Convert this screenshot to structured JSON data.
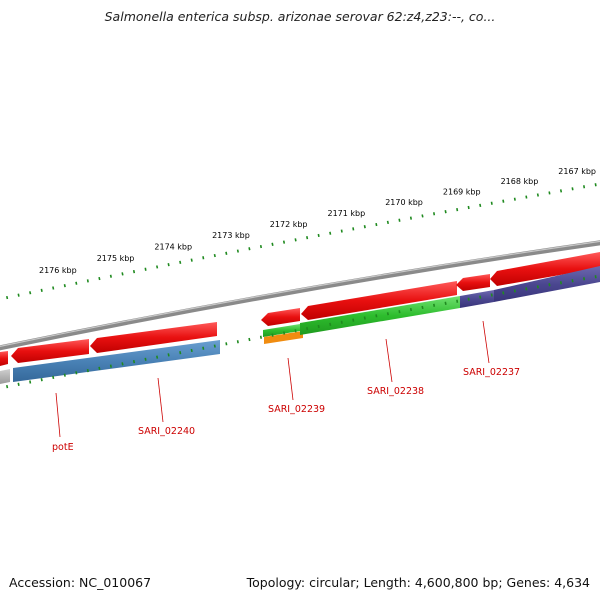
{
  "title": "Salmonella enterica subsp. arizonae serovar 62:z4,z23:--, co...",
  "footer": {
    "accession": "Accession: NC_010067",
    "summary": "Topology: circular; Length: 4,600,800 bp; Genes: 4,634"
  },
  "colors": {
    "forward_cds": "#e81010",
    "reverse_blue": "#4a82b6",
    "reverse_purple": "#4b4790",
    "rna_green": "#2ebd2e",
    "orange": "#f08c10",
    "backbone": "#8a8a8a",
    "tick": "#1f8a1f",
    "label": "#cc0000"
  },
  "kbp_labels": [
    {
      "text": "2167 kbp",
      "kb": 2167
    },
    {
      "text": "2168 kbp",
      "kb": 2168
    },
    {
      "text": "2169 kbp",
      "kb": 2169
    },
    {
      "text": "2170 kbp",
      "kb": 2170
    },
    {
      "text": "2171 kbp",
      "kb": 2171
    },
    {
      "text": "2172 kbp",
      "kb": 2172
    },
    {
      "text": "2173 kbp",
      "kb": 2173
    },
    {
      "text": "2174 kbp",
      "kb": 2174
    },
    {
      "text": "2175 kbp",
      "kb": 2175
    },
    {
      "text": "2176 kbp",
      "kb": 2176
    }
  ],
  "gene_labels": [
    {
      "text": "potE"
    },
    {
      "text": "SARI_02240"
    },
    {
      "text": "SARI_02239"
    },
    {
      "text": "SARI_02238"
    },
    {
      "text": "SARI_02237"
    }
  ]
}
